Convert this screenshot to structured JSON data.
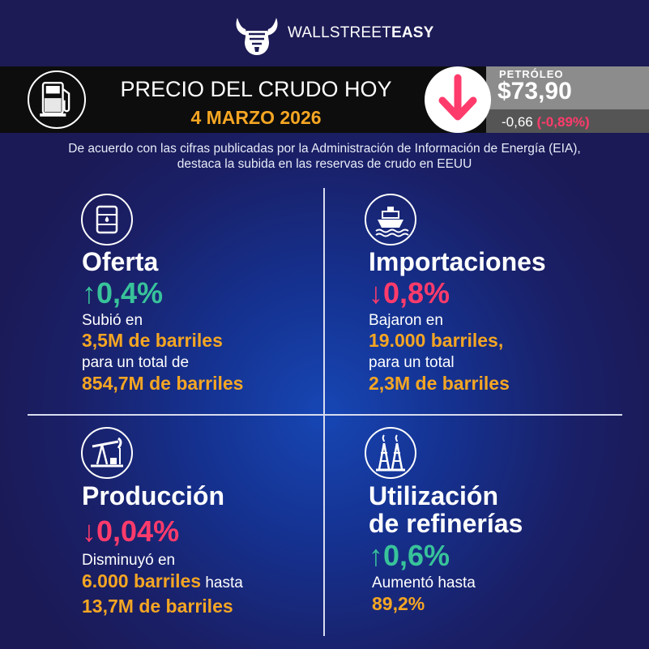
{
  "brand": {
    "name_light": "WALLSTREET",
    "name_bold": "EASY"
  },
  "header": {
    "title": "PRECIO DEL CRUDO HOY",
    "date": "4 MARZO 2026",
    "oil_label": "PETRÓLEO",
    "oil_price": "$73,90",
    "oil_change": "-0,66",
    "oil_change_pct": "(-0,89%)"
  },
  "intro": "De acuerdo con las cifras publicadas por la Administración de Información de Energía (EIA), destaca la subida en las reservas de crudo en EEUU",
  "quadrants": {
    "oferta": {
      "title": "Oferta",
      "arrow": "↑",
      "pct": "0,4%",
      "line1": "Subió en",
      "line2": "3,5M de barriles",
      "line3": "para un total de",
      "line4": "854,7M de barriles"
    },
    "importaciones": {
      "title": "Importaciones",
      "arrow": "↓",
      "pct": "0,8%",
      "line1": "Bajaron en",
      "line2": "19.000 barriles,",
      "line3": "para un total",
      "line4": "2,3M de barriles"
    },
    "produccion": {
      "title": "Producción",
      "arrow": "↓",
      "pct": "0,04%",
      "line1": "Disminuyó en",
      "line2": "6.000 barriles",
      "line2_suffix": " hasta",
      "line3": "13,7M de barriles"
    },
    "refinerias": {
      "title_1": "Utilización",
      "title_2": "de refinerías",
      "arrow": "↑",
      "pct": "0,6%",
      "line1": "Aumentó hasta",
      "line2": "89,2%"
    }
  },
  "colors": {
    "up": "#38c39a",
    "down": "#ff3b6b",
    "highlight": "#f5a623",
    "background": "#1b1a57"
  },
  "icons": [
    "bull-fist-logo-icon",
    "fuel-pump-icon",
    "down-arrow-icon",
    "oil-barrel-icon",
    "cargo-ship-icon",
    "oil-pumpjack-icon",
    "refinery-tower-icon"
  ]
}
